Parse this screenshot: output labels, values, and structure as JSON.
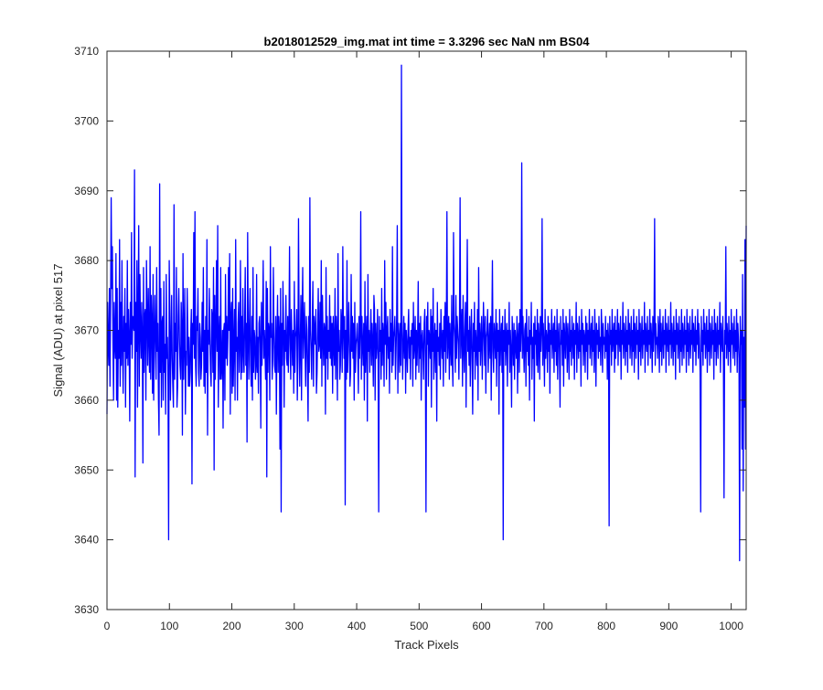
{
  "chart_data": {
    "type": "line",
    "title": "b2018012529_img.mat int time = 3.3296 sec  NaN nm BS04",
    "xlabel": "Track Pixels",
    "ylabel": "Signal (ADU) at pixel 517",
    "xlim": [
      0,
      1024
    ],
    "ylim": [
      3630,
      3710
    ],
    "xticks": [
      0,
      100,
      200,
      300,
      400,
      500,
      600,
      700,
      800,
      900,
      1000
    ],
    "yticks": [
      3630,
      3640,
      3650,
      3660,
      3670,
      3680,
      3690,
      3700,
      3710
    ],
    "grid": false,
    "legend": "none",
    "series_color": "#0000ff",
    "notable_points": [
      {
        "x": 0,
        "y": 3658
      },
      {
        "x": 7,
        "y": 3689
      },
      {
        "x": 46,
        "y": 3693
      },
      {
        "x": 47,
        "y": 3649
      },
      {
        "x": 88,
        "y": 3691
      },
      {
        "x": 103,
        "y": 3640
      },
      {
        "x": 497,
        "y": 3708
      },
      {
        "x": 534,
        "y": 3644
      },
      {
        "x": 684,
        "y": 3640
      },
      {
        "x": 711,
        "y": 3694
      },
      {
        "x": 808,
        "y": 3642
      },
      {
        "x": 1007,
        "y": 3637
      },
      {
        "x": 1023,
        "y": 3685
      }
    ],
    "series": [
      {
        "values": [
          3658,
          3674,
          3668,
          3665,
          3676,
          3662,
          3674,
          3689,
          3676,
          3682,
          3668,
          3660,
          3674,
          3668,
          3666,
          3681,
          3660,
          3676,
          3659,
          3670,
          3666,
          3683,
          3662,
          3674,
          3665,
          3680,
          3668,
          3661,
          3672,
          3667,
          3676,
          3659,
          3671,
          3666,
          3680,
          3665,
          3673,
          3669,
          3657,
          3674,
          3668,
          3684,
          3666,
          3672,
          3671,
          3670,
          3693,
          3649,
          3674,
          3667,
          3680,
          3659,
          3672,
          3685,
          3662,
          3678,
          3670,
          3666,
          3674,
          3669,
          3651,
          3679,
          3664,
          3672,
          3673,
          3660,
          3680,
          3672,
          3665,
          3676,
          3669,
          3664,
          3682,
          3663,
          3675,
          3671,
          3661,
          3678,
          3660,
          3669,
          3675,
          3668,
          3663,
          3679,
          3667,
          3671,
          3660,
          3655,
          3691,
          3664,
          3676,
          3659,
          3671,
          3672,
          3660,
          3677,
          3664,
          3668,
          3658,
          3678,
          3666,
          3669,
          3662,
          3640,
          3680,
          3673,
          3660,
          3668,
          3675,
          3666,
          3662,
          3659,
          3688,
          3663,
          3671,
          3667,
          3679,
          3659,
          3662,
          3672,
          3676,
          3669,
          3665,
          3663,
          3674,
          3670,
          3655,
          3681,
          3663,
          3669,
          3676,
          3658,
          3667,
          3665,
          3676,
          3670,
          3662,
          3669,
          3662,
          3664,
          3670,
          3673,
          3648,
          3671,
          3668,
          3684,
          3666,
          3687,
          3665,
          3662,
          3672,
          3670,
          3676,
          3664,
          3662,
          3671,
          3669,
          3663,
          3665,
          3674,
          3667,
          3679,
          3662,
          3670,
          3661,
          3672,
          3664,
          3683,
          3655,
          3670,
          3668,
          3676,
          3669,
          3664,
          3662,
          3673,
          3672,
          3664,
          3679,
          3650,
          3675,
          3663,
          3670,
          3680,
          3667,
          3685,
          3659,
          3669,
          3672,
          3663,
          3679,
          3663,
          3665,
          3670,
          3656,
          3670,
          3671,
          3660,
          3678,
          3666,
          3672,
          3665,
          3669,
          3679,
          3670,
          3681,
          3658,
          3672,
          3674,
          3661,
          3676,
          3662,
          3668,
          3673,
          3660,
          3683,
          3667,
          3669,
          3660,
          3671,
          3674,
          3664,
          3668,
          3680,
          3663,
          3672,
          3664,
          3676,
          3667,
          3664,
          3671,
          3679,
          3665,
          3671,
          3654,
          3684,
          3670,
          3663,
          3671,
          3676,
          3665,
          3662,
          3672,
          3660,
          3679,
          3664,
          3670,
          3669,
          3663,
          3665,
          3678,
          3664,
          3669,
          3661,
          3671,
          3672,
          3668,
          3656,
          3674,
          3665,
          3671,
          3680,
          3666,
          3670,
          3667,
          3663,
          3677,
          3649,
          3676,
          3664,
          3671,
          3670,
          3660,
          3682,
          3669,
          3671,
          3663,
          3666,
          3679,
          3670,
          3665,
          3664,
          3672,
          3658,
          3669,
          3675,
          3664,
          3672,
          3670,
          3653,
          3676,
          3644,
          3671,
          3665,
          3677,
          3671,
          3659,
          3670,
          3667,
          3675,
          3666,
          3665,
          3672,
          3664,
          3670,
          3682,
          3668,
          3663,
          3673,
          3669,
          3665,
          3670,
          3661,
          3677,
          3664,
          3669,
          3670,
          3673,
          3660,
          3666,
          3686,
          3671,
          3662,
          3668,
          3675,
          3660,
          3672,
          3679,
          3666,
          3670,
          3674,
          3667,
          3662,
          3672,
          3670,
          3664,
          3657,
          3672,
          3664,
          3689,
          3670,
          3667,
          3663,
          3671,
          3677,
          3662,
          3672,
          3670,
          3668,
          3673,
          3661,
          3664,
          3670,
          3676,
          3667,
          3668,
          3674,
          3666,
          3680,
          3662,
          3675,
          3669,
          3665,
          3671,
          3670,
          3658,
          3679,
          3666,
          3672,
          3663,
          3670,
          3667,
          3675,
          3666,
          3672,
          3665,
          3671,
          3661,
          3672,
          3668,
          3665,
          3676,
          3663,
          3672,
          3669,
          3660,
          3681,
          3667,
          3670,
          3663,
          3665,
          3673,
          3671,
          3664,
          3682,
          3670,
          3666,
          3672,
          3645,
          3670,
          3663,
          3680,
          3664,
          3668,
          3674,
          3669,
          3662,
          3664,
          3678,
          3667,
          3672,
          3666,
          3671,
          3660,
          3674,
          3664,
          3668,
          3669,
          3671,
          3667,
          3661,
          3672,
          3666,
          3670,
          3687,
          3663,
          3672,
          3668,
          3665,
          3671,
          3660,
          3677,
          3664,
          3669,
          3672,
          3657,
          3678,
          3667,
          3670,
          3664,
          3669,
          3673,
          3665,
          3671,
          3668,
          3662,
          3675,
          3673,
          3660,
          3671,
          3666,
          3668,
          3673,
          3665,
          3644,
          3672,
          3667,
          3670,
          3663,
          3676,
          3665,
          3671,
          3669,
          3662,
          3680,
          3668,
          3674,
          3663,
          3670,
          3672,
          3666,
          3669,
          3661,
          3673,
          3667,
          3671,
          3664,
          3682,
          3665,
          3669,
          3670,
          3672,
          3663,
          3667,
          3672,
          3685,
          3661,
          3671,
          3669,
          3664,
          3671,
          3665,
          3708,
          3670,
          3663,
          3668,
          3672,
          3666,
          3671,
          3661,
          3670,
          3668,
          3664,
          3670,
          3673,
          3666,
          3669,
          3663,
          3670,
          3668,
          3671,
          3662,
          3674,
          3666,
          3668,
          3672,
          3663,
          3670,
          3665,
          3669,
          3677,
          3664,
          3671,
          3666,
          3672,
          3660,
          3669,
          3670,
          3667,
          3663,
          3671,
          3673,
          3666,
          3644,
          3672,
          3668,
          3674,
          3662,
          3670,
          3669,
          3666,
          3673,
          3659,
          3672,
          3667,
          3676,
          3663,
          3668,
          3671,
          3664,
          3670,
          3657,
          3674,
          3667,
          3669,
          3665,
          3671,
          3663,
          3673,
          3669,
          3666,
          3670,
          3662,
          3672,
          3667,
          3674,
          3664,
          3670,
          3687,
          3666,
          3669,
          3672,
          3663,
          3671,
          3668,
          3665,
          3675,
          3666,
          3662,
          3684,
          3671,
          3669,
          3664,
          3675,
          3666,
          3672,
          3670,
          3668,
          3663,
          3672,
          3689,
          3666,
          3670,
          3673,
          3662,
          3675,
          3668,
          3664,
          3670,
          3674,
          3659,
          3671,
          3683,
          3667,
          3670,
          3665,
          3672,
          3662,
          3669,
          3673,
          3666,
          3658,
          3671,
          3667,
          3674,
          3663,
          3670,
          3668,
          3665,
          3673,
          3660,
          3679,
          3667,
          3671,
          3665,
          3669,
          3672,
          3663,
          3668,
          3674,
          3670,
          3665,
          3672,
          3661,
          3669,
          3670,
          3673,
          3664,
          3668,
          3671,
          3666,
          3672,
          3660,
          3670,
          3680,
          3667,
          3664,
          3671,
          3669,
          3666,
          3673,
          3662,
          3671,
          3667,
          3670,
          3658,
          3673,
          3665,
          3669,
          3671,
          3664,
          3672,
          3640,
          3670,
          3667,
          3673,
          3665,
          3669,
          3671,
          3662,
          3670,
          3668,
          3674,
          3664,
          3670,
          3667,
          3659,
          3672,
          3669,
          3665,
          3671,
          3663,
          3670,
          3668,
          3666,
          3672,
          3661,
          3669,
          3671,
          3664,
          3673,
          3667,
          3670,
          3694,
          3666,
          3672,
          3668,
          3664,
          3670,
          3671,
          3662,
          3673,
          3667,
          3669,
          3665,
          3672,
          3660,
          3670,
          3668,
          3674,
          3663,
          3669,
          3666,
          3671,
          3657,
          3672,
          3668,
          3670,
          3665,
          3673,
          3664,
          3671,
          3669,
          3663,
          3672,
          3667,
          3670,
          3686,
          3665,
          3671,
          3668,
          3662,
          3673,
          3666,
          3670,
          3669,
          3664,
          3672,
          3667,
          3671,
          3661,
          3670,
          3668,
          3673,
          3666,
          3669,
          3671,
          3664,
          3672,
          3667,
          3670,
          3665,
          3673,
          3663,
          3669,
          3671,
          3667,
          3659,
          3672,
          3668,
          3670,
          3665,
          3673,
          3662,
          3671,
          3669,
          3666,
          3672,
          3670,
          3664,
          3671,
          3668,
          3663,
          3673,
          3667,
          3670,
          3665,
          3672,
          3669,
          3666,
          3671,
          3663,
          3670,
          3668,
          3674,
          3664,
          3671,
          3669,
          3666,
          3672,
          3667,
          3670,
          3662,
          3673,
          3668,
          3671,
          3665,
          3670,
          3669,
          3664,
          3672,
          3667,
          3671,
          3663,
          3670,
          3668,
          3673,
          3666,
          3669,
          3671,
          3665,
          3672,
          3667,
          3670,
          3664,
          3673,
          3669,
          3662,
          3671,
          3668,
          3670,
          3666,
          3672,
          3667,
          3669,
          3665,
          3673,
          3670,
          3664,
          3671,
          3668,
          3669,
          3666,
          3672,
          3667,
          3670,
          3663,
          3671,
          3669,
          3642,
          3672,
          3668,
          3670,
          3665,
          3673,
          3667,
          3669,
          3671,
          3664,
          3672,
          3666,
          3670,
          3668,
          3673,
          3665,
          3671,
          3669,
          3667,
          3672,
          3663,
          3670,
          3668,
          3674,
          3666,
          3671,
          3669,
          3665,
          3672,
          3667,
          3670,
          3664,
          3673,
          3668,
          3671,
          3666,
          3669,
          3672,
          3665,
          3670,
          3667,
          3673,
          3664,
          3671,
          3669,
          3666,
          3672,
          3668,
          3670,
          3663,
          3673,
          3667,
          3671,
          3665,
          3669,
          3672,
          3666,
          3670,
          3668,
          3674,
          3664,
          3671,
          3669,
          3667,
          3672,
          3665,
          3670,
          3668,
          3673,
          3666,
          3671,
          3669,
          3664,
          3672,
          3667,
          3670,
          3686,
          3665,
          3671,
          3668,
          3669,
          3666,
          3672,
          3670,
          3664,
          3673,
          3667,
          3671,
          3665,
          3669,
          3672,
          3666,
          3670,
          3668,
          3673,
          3664,
          3671,
          3669,
          3667,
          3672,
          3665,
          3670,
          3668,
          3674,
          3666,
          3671,
          3669,
          3665,
          3672,
          3667,
          3670,
          3663,
          3673,
          3668,
          3671,
          3666,
          3669,
          3672,
          3664,
          3670,
          3667,
          3673,
          3665,
          3671,
          3669,
          3666,
          3672,
          3668,
          3670,
          3664,
          3673,
          3667,
          3671,
          3665,
          3669,
          3672,
          3666,
          3670,
          3668,
          3673,
          3664,
          3671,
          3669,
          3667,
          3672,
          3665,
          3670,
          3668,
          3673,
          3666,
          3671,
          3669,
          3664,
          3644,
          3672,
          3667,
          3670,
          3665,
          3673,
          3668,
          3671,
          3666,
          3669,
          3672,
          3664,
          3670,
          3667,
          3673,
          3665,
          3671,
          3669,
          3666,
          3672,
          3668,
          3670,
          3663,
          3673,
          3667,
          3671,
          3665,
          3669,
          3672,
          3666,
          3670,
          3668,
          3674,
          3664,
          3671,
          3669,
          3667,
          3672,
          3665,
          3646,
          3670,
          3668,
          3682,
          3666,
          3671,
          3669,
          3665,
          3672,
          3667,
          3670,
          3664,
          3673,
          3668,
          3671,
          3666,
          3669,
          3672,
          3665,
          3670,
          3667,
          3673,
          3664,
          3671,
          3669,
          3666,
          3637,
          3672,
          3668,
          3670,
          3653,
          3678,
          3647,
          3669,
          3659,
          3683,
          3653,
          3685
        ]
      }
    ]
  }
}
